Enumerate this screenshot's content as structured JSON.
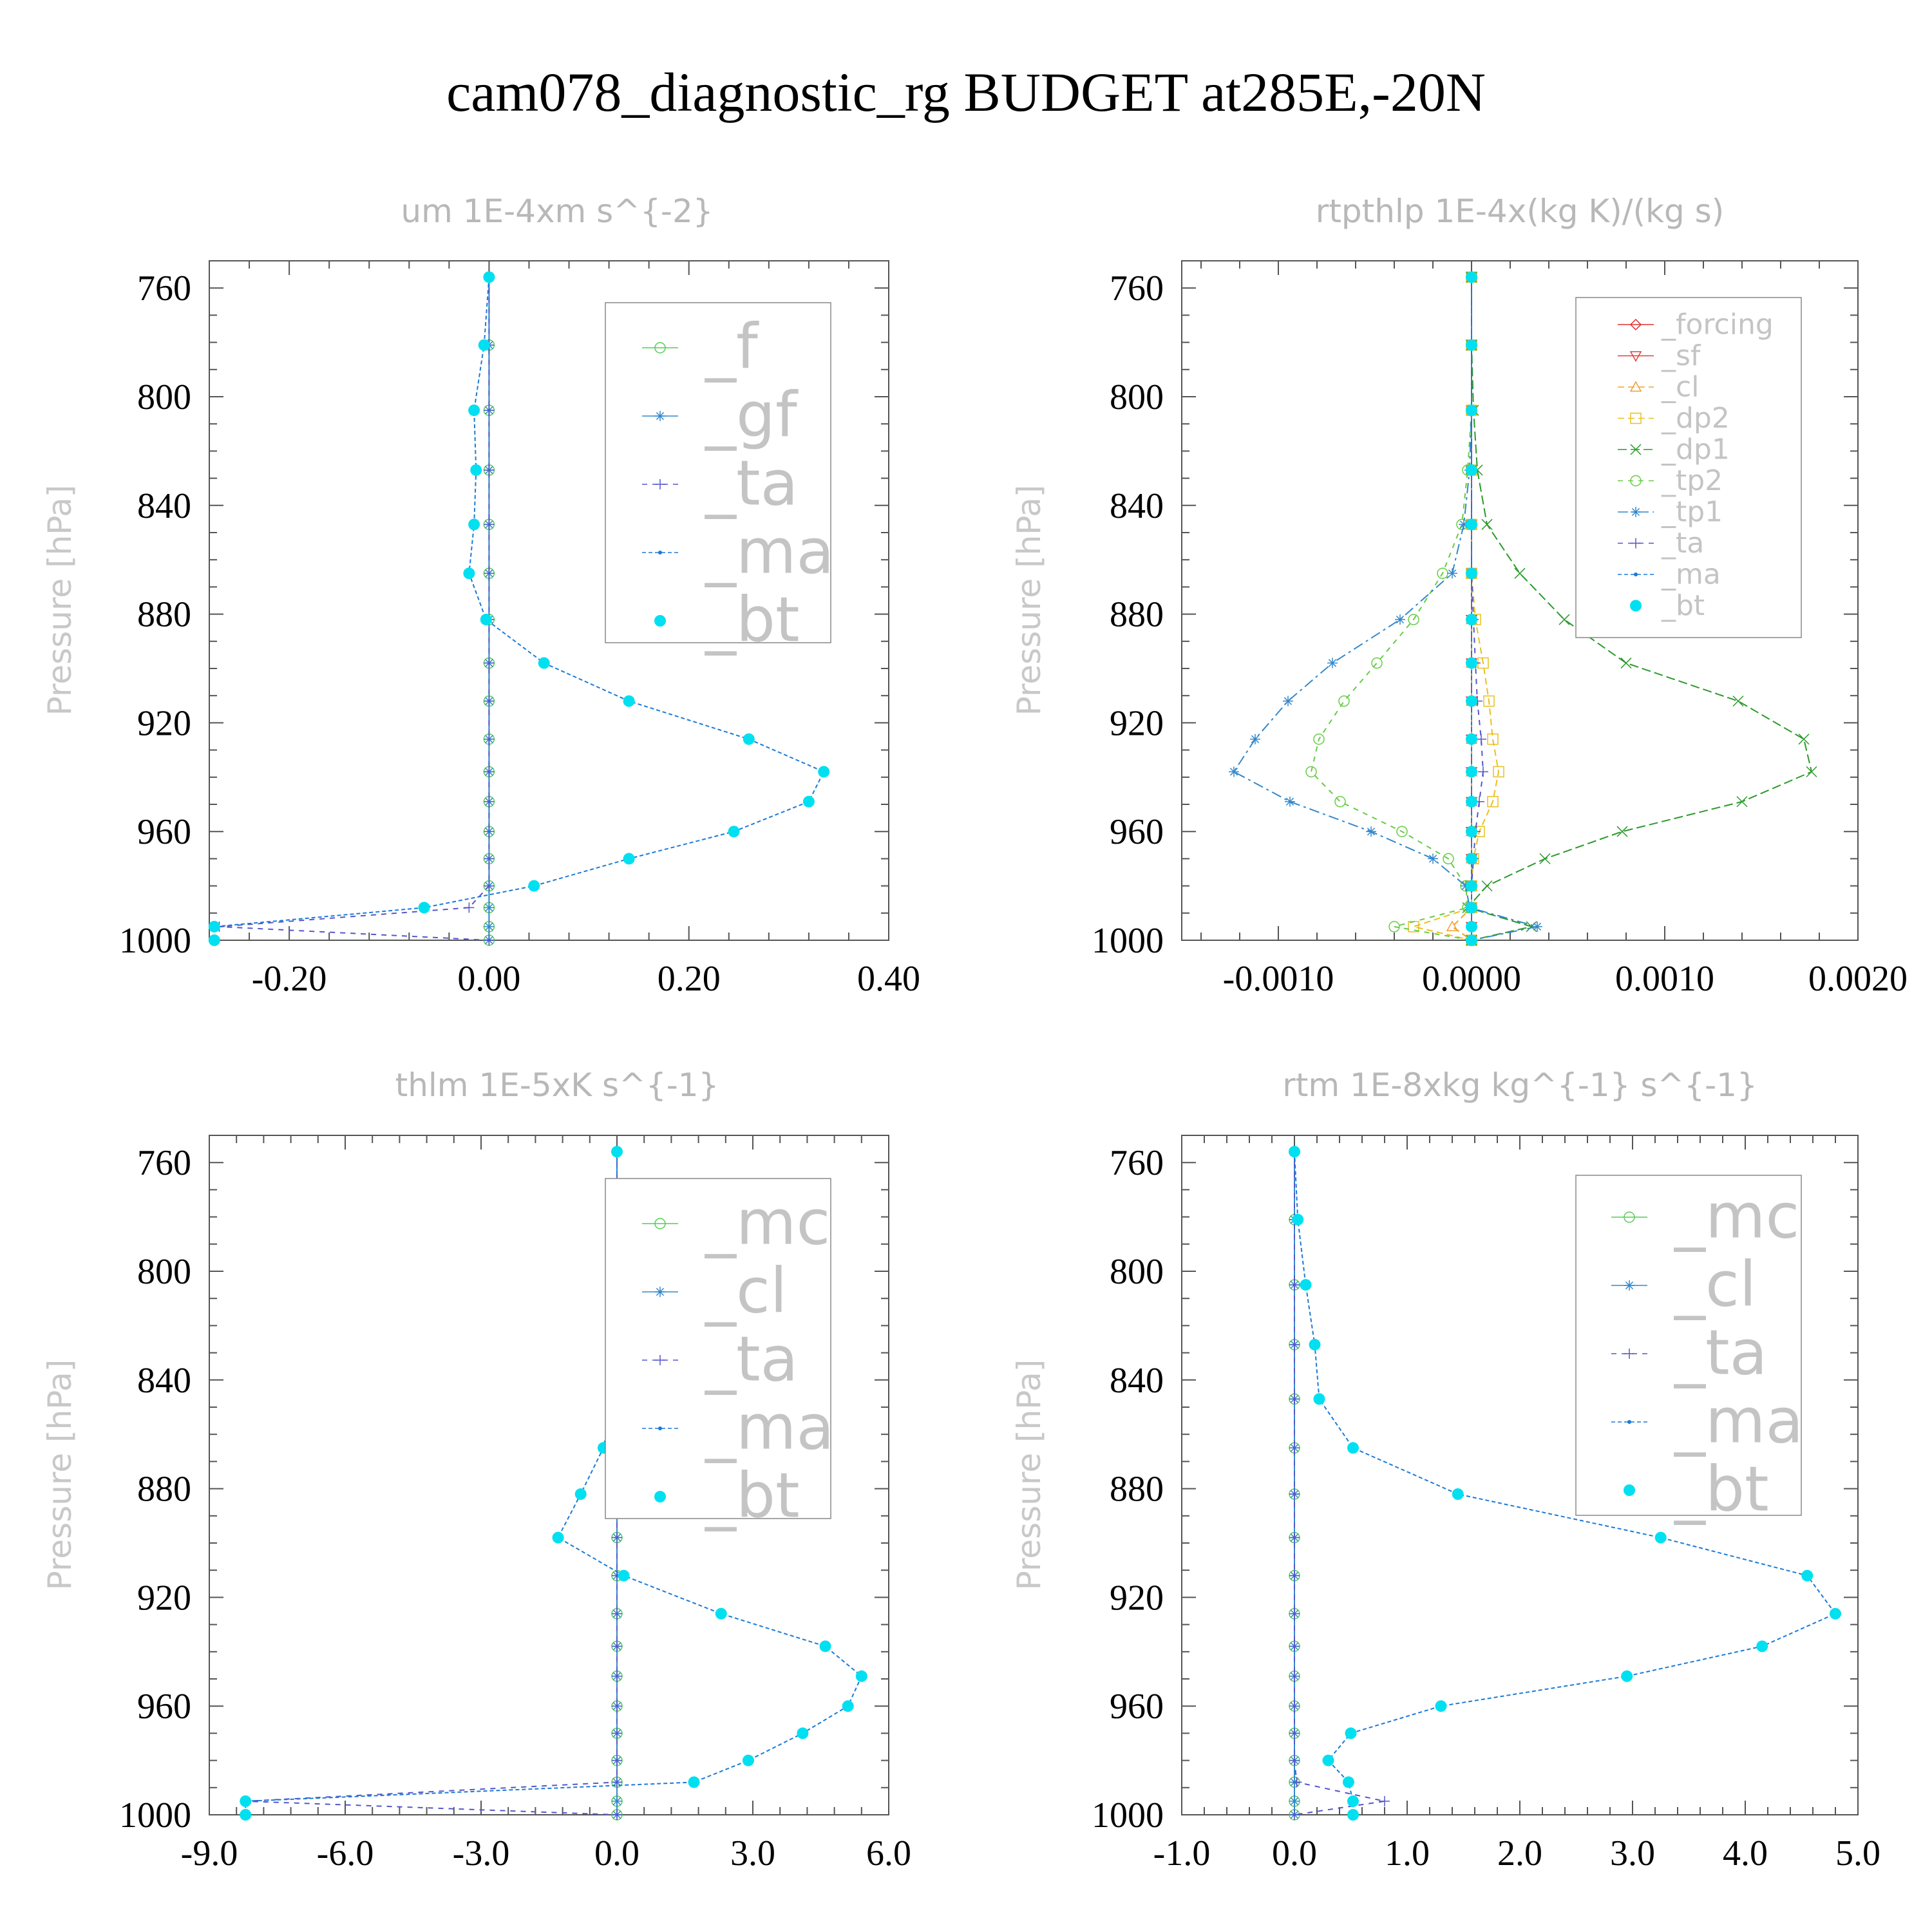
{
  "title": "cam078_diagnostic_rg  BUDGET at285E,-20N",
  "colors": {
    "forcing": "#e03030",
    "sf": "#e04040",
    "cl_warm": "#f0a030",
    "dp2": "#e8c020",
    "dp1": "#2a9a2a",
    "tp2": "#66cc44",
    "f": "#55cc55",
    "mc": "#55cc55",
    "gf": "#3388cc",
    "tp1": "#3388cc",
    "cl": "#3388cc",
    "ta": "#5555cc",
    "ma": "#1a7ad8",
    "bt": "#00e0f0"
  },
  "chart_data": [
    {
      "type": "line",
      "title": "um  1E-4xm s^{-2}",
      "ylabel": "Pressure [hPa]",
      "xlim": [
        -0.28,
        0.4
      ],
      "ylim": [
        750,
        1000
      ],
      "xticks": [
        "-0.20",
        "0.00",
        "0.20",
        "0.40"
      ],
      "xtick_values": [
        -0.2,
        0.0,
        0.2,
        0.4
      ],
      "yticks": [
        "760",
        "800",
        "840",
        "880",
        "920",
        "960",
        "1000"
      ],
      "ytick_values": [
        760,
        800,
        840,
        880,
        920,
        960,
        1000
      ],
      "pressure": [
        756,
        781,
        805,
        827,
        847,
        865,
        882,
        898,
        912,
        926,
        938,
        949,
        960,
        970,
        980,
        988,
        995,
        1000
      ],
      "legend_font": 96,
      "series": [
        {
          "name": "_f",
          "color_key": "f",
          "marker": "circle",
          "dash": "0",
          "values": [
            0,
            0,
            0,
            0,
            0,
            0,
            0,
            0,
            0,
            0,
            0,
            0,
            0,
            0,
            0,
            0,
            0,
            0
          ]
        },
        {
          "name": "_gf",
          "color_key": "gf",
          "marker": "star",
          "dash": "0",
          "values": [
            0,
            0,
            0,
            0,
            0,
            0,
            0,
            0,
            0,
            0,
            0,
            0,
            0,
            0,
            0,
            0,
            0,
            0
          ]
        },
        {
          "name": "_ta",
          "color_key": "ta",
          "marker": "plus",
          "dash": "8 8",
          "values": [
            0,
            0,
            0,
            0,
            0,
            0,
            0,
            0,
            0,
            0,
            0,
            0,
            0,
            0,
            0,
            -0.02,
            -0.27,
            0
          ]
        },
        {
          "name": "_ma",
          "color_key": "ma",
          "marker": "dot",
          "dash": "6 4",
          "values": [
            0.0,
            -0.005,
            -0.015,
            -0.013,
            -0.015,
            -0.02,
            -0.003,
            0.055,
            0.14,
            0.26,
            0.335,
            0.32,
            0.245,
            0.14,
            0.045,
            -0.065,
            -0.275,
            -0.275
          ]
        },
        {
          "name": "_bt",
          "color_key": "bt",
          "marker": "bigdot",
          "dash": "none",
          "values": [
            0.0,
            -0.005,
            -0.015,
            -0.013,
            -0.015,
            -0.02,
            -0.003,
            0.055,
            0.14,
            0.26,
            0.335,
            0.32,
            0.245,
            0.14,
            0.045,
            -0.065,
            -0.275,
            -0.275
          ]
        }
      ]
    },
    {
      "type": "line",
      "title": "rtpthlp  1E-4x(kg K)/(kg s)",
      "ylabel": "Pressure [hPa]",
      "xlim": [
        -0.0015,
        0.002
      ],
      "ylim": [
        750,
        1000
      ],
      "xticks": [
        "-0.0010",
        "0.0000",
        "0.0010",
        "0.0020"
      ],
      "xtick_values": [
        -0.001,
        0.0,
        0.001,
        0.002
      ],
      "yticks": [
        "760",
        "800",
        "840",
        "880",
        "920",
        "960",
        "1000"
      ],
      "ytick_values": [
        760,
        800,
        840,
        880,
        920,
        960,
        1000
      ],
      "pressure": [
        756,
        781,
        805,
        827,
        847,
        865,
        882,
        898,
        912,
        926,
        938,
        949,
        960,
        970,
        980,
        988,
        995,
        1000
      ],
      "legend_font": 44,
      "series": [
        {
          "name": "_forcing",
          "color_key": "forcing",
          "marker": "diamond",
          "dash": "0",
          "values": [
            0,
            0,
            0,
            0,
            0,
            0,
            0,
            0,
            0,
            0,
            0,
            0,
            0,
            0,
            0,
            0,
            0,
            0
          ]
        },
        {
          "name": "_sf",
          "color_key": "sf",
          "marker": "tridown",
          "dash": "0",
          "values": [
            0,
            0,
            0,
            0,
            0,
            0,
            0,
            0,
            0,
            0,
            0,
            0,
            0,
            0,
            0,
            0,
            0,
            0
          ]
        },
        {
          "name": "_cl",
          "color_key": "cl_warm",
          "marker": "triup",
          "dash": "10 6",
          "values": [
            0,
            0,
            0,
            0,
            0,
            0,
            0,
            0,
            0,
            0,
            0,
            0,
            0,
            0,
            0,
            0,
            -0.0001,
            0
          ]
        },
        {
          "name": "_dp2",
          "color_key": "dp2",
          "marker": "square",
          "dash": "10 6",
          "values": [
            0,
            0,
            0,
            0,
            0,
            0,
            2e-05,
            6e-05,
            9e-05,
            0.00011,
            0.00014,
            0.00011,
            4e-05,
            1e-05,
            0,
            0,
            -0.0003,
            0
          ]
        },
        {
          "name": "_dp1",
          "color_key": "dp1",
          "marker": "x",
          "dash": "14 6",
          "values": [
            0,
            0,
            1e-05,
            3e-05,
            8e-05,
            0.00025,
            0.00048,
            0.0008,
            0.00138,
            0.00172,
            0.00176,
            0.0014,
            0.00078,
            0.00038,
            8e-05,
            -2e-05,
            0.00031,
            0
          ]
        },
        {
          "name": "_tp2",
          "color_key": "tp2",
          "marker": "circle",
          "dash": "8 8",
          "values": [
            0,
            0,
            0,
            -2e-05,
            -5e-05,
            -0.00015,
            -0.0003,
            -0.00049,
            -0.00066,
            -0.00079,
            -0.00083,
            -0.00068,
            -0.00036,
            -0.00012,
            -3e-05,
            -2e-05,
            -0.0004,
            0
          ]
        },
        {
          "name": "_tp1",
          "color_key": "tp1",
          "marker": "star",
          "dash": "16 6 4 6",
          "values": [
            0,
            0,
            0,
            -1e-05,
            -4e-05,
            -0.0001,
            -0.00037,
            -0.00072,
            -0.00095,
            -0.00112,
            -0.00123,
            -0.00094,
            -0.00052,
            -0.0002,
            -3e-05,
            -1e-05,
            0.00034,
            0
          ]
        },
        {
          "name": "_ta",
          "color_key": "ta",
          "marker": "plus",
          "dash": "8 8",
          "values": [
            0,
            0,
            0,
            0,
            0,
            0,
            1e-05,
            2e-05,
            3e-05,
            5e-05,
            6e-05,
            4e-05,
            2e-05,
            1e-05,
            0,
            0,
            0,
            0
          ]
        },
        {
          "name": "_ma",
          "color_key": "ma",
          "marker": "dot",
          "dash": "6 4",
          "values": [
            0,
            0,
            0,
            0,
            0,
            0,
            0,
            0,
            0,
            0,
            0,
            0,
            0,
            0,
            0,
            0,
            0,
            0
          ]
        },
        {
          "name": "_bt",
          "color_key": "bt",
          "marker": "bigdot",
          "dash": "none",
          "values": [
            0,
            0,
            0,
            0,
            0,
            0,
            0,
            0,
            0,
            0,
            0,
            0,
            0,
            0,
            0,
            0,
            0,
            0
          ]
        }
      ]
    },
    {
      "type": "line",
      "title": "thlm  1E-5xK s^{-1}",
      "ylabel": "Pressure [hPa]",
      "xlim": [
        -9.0,
        6.0
      ],
      "ylim": [
        750,
        1000
      ],
      "xticks": [
        "-9.0",
        "-6.0",
        "-3.0",
        "0.0",
        "3.0",
        "6.0"
      ],
      "xtick_values": [
        -9.0,
        -6.0,
        -3.0,
        0.0,
        3.0,
        6.0
      ],
      "yticks": [
        "760",
        "800",
        "840",
        "880",
        "920",
        "960",
        "1000"
      ],
      "ytick_values": [
        760,
        800,
        840,
        880,
        920,
        960,
        1000
      ],
      "pressure": [
        756,
        781,
        805,
        827,
        847,
        865,
        882,
        898,
        912,
        926,
        938,
        949,
        960,
        970,
        980,
        988,
        995,
        1000
      ],
      "legend_font": 96,
      "series": [
        {
          "name": "_mc",
          "color_key": "mc",
          "marker": "circle",
          "dash": "0",
          "values": [
            0,
            0,
            0,
            0,
            0,
            0,
            0,
            0,
            0,
            0,
            0,
            0,
            0,
            0,
            0,
            0,
            0,
            0
          ]
        },
        {
          "name": "_cl",
          "color_key": "cl",
          "marker": "star",
          "dash": "0",
          "values": [
            0,
            0,
            0,
            0,
            0,
            0,
            0,
            0,
            0,
            0,
            0,
            0,
            0,
            0,
            0,
            0,
            0,
            0
          ]
        },
        {
          "name": "_ta",
          "color_key": "ta",
          "marker": "plus",
          "dash": "8 8",
          "values": [
            0,
            0,
            0,
            0,
            0,
            0,
            0,
            0,
            0,
            0,
            0,
            0,
            0,
            0,
            0,
            0,
            -8.2,
            0
          ]
        },
        {
          "name": "_ma",
          "color_key": "ma",
          "marker": "dot",
          "dash": "6 4",
          "values": [
            0.0,
            0.0,
            -0.05,
            -0.05,
            -0.08,
            -0.3,
            -0.8,
            -1.3,
            0.15,
            2.3,
            4.6,
            5.4,
            5.1,
            4.1,
            2.9,
            1.7,
            -8.2,
            -8.2
          ]
        },
        {
          "name": "_bt",
          "color_key": "bt",
          "marker": "bigdot",
          "dash": "none",
          "values": [
            0.0,
            0.0,
            -0.05,
            -0.05,
            -0.08,
            -0.3,
            -0.8,
            -1.3,
            0.15,
            2.3,
            4.6,
            5.4,
            5.1,
            4.1,
            2.9,
            1.7,
            -8.2,
            -8.2
          ]
        }
      ]
    },
    {
      "type": "line",
      "title": "rtm  1E-8xkg kg^{-1} s^{-1}",
      "ylabel": "Pressure [hPa]",
      "xlim": [
        -1.0,
        5.0
      ],
      "ylim": [
        750,
        1000
      ],
      "xticks": [
        "-1.0",
        "0.0",
        "1.0",
        "2.0",
        "3.0",
        "4.0",
        "5.0"
      ],
      "xtick_values": [
        -1.0,
        0.0,
        1.0,
        2.0,
        3.0,
        4.0,
        5.0
      ],
      "yticks": [
        "760",
        "800",
        "840",
        "880",
        "920",
        "960",
        "1000"
      ],
      "ytick_values": [
        760,
        800,
        840,
        880,
        920,
        960,
        1000
      ],
      "pressure": [
        756,
        781,
        805,
        827,
        847,
        865,
        882,
        898,
        912,
        926,
        938,
        949,
        960,
        970,
        980,
        988,
        995,
        1000
      ],
      "legend_font": 96,
      "series": [
        {
          "name": "_mc",
          "color_key": "mc",
          "marker": "circle",
          "dash": "0",
          "values": [
            0,
            0,
            0,
            0,
            0,
            0,
            0,
            0,
            0,
            0,
            0,
            0,
            0,
            0,
            0,
            0,
            0,
            0
          ]
        },
        {
          "name": "_cl",
          "color_key": "cl",
          "marker": "star",
          "dash": "0",
          "values": [
            0,
            0,
            0,
            0,
            0,
            0,
            0,
            0,
            0,
            0,
            0,
            0,
            0,
            0,
            0,
            0,
            0,
            0
          ]
        },
        {
          "name": "_ta",
          "color_key": "ta",
          "marker": "plus",
          "dash": "8 8",
          "values": [
            0,
            0,
            0,
            0,
            0,
            0,
            0,
            0,
            0,
            0,
            0,
            0,
            0,
            0,
            0,
            0.02,
            0.8,
            0
          ]
        },
        {
          "name": "_ma",
          "color_key": "ma",
          "marker": "dot",
          "dash": "6 4",
          "values": [
            0.0,
            0.03,
            0.1,
            0.18,
            0.22,
            0.52,
            1.45,
            3.25,
            4.55,
            4.8,
            4.15,
            2.95,
            1.3,
            0.5,
            0.3,
            0.48,
            0.52,
            0.52
          ]
        },
        {
          "name": "_bt",
          "color_key": "bt",
          "marker": "bigdot",
          "dash": "none",
          "values": [
            0.0,
            0.03,
            0.1,
            0.18,
            0.22,
            0.52,
            1.45,
            3.25,
            4.55,
            4.8,
            4.15,
            2.95,
            1.3,
            0.5,
            0.3,
            0.48,
            0.52,
            0.52
          ]
        }
      ]
    }
  ]
}
